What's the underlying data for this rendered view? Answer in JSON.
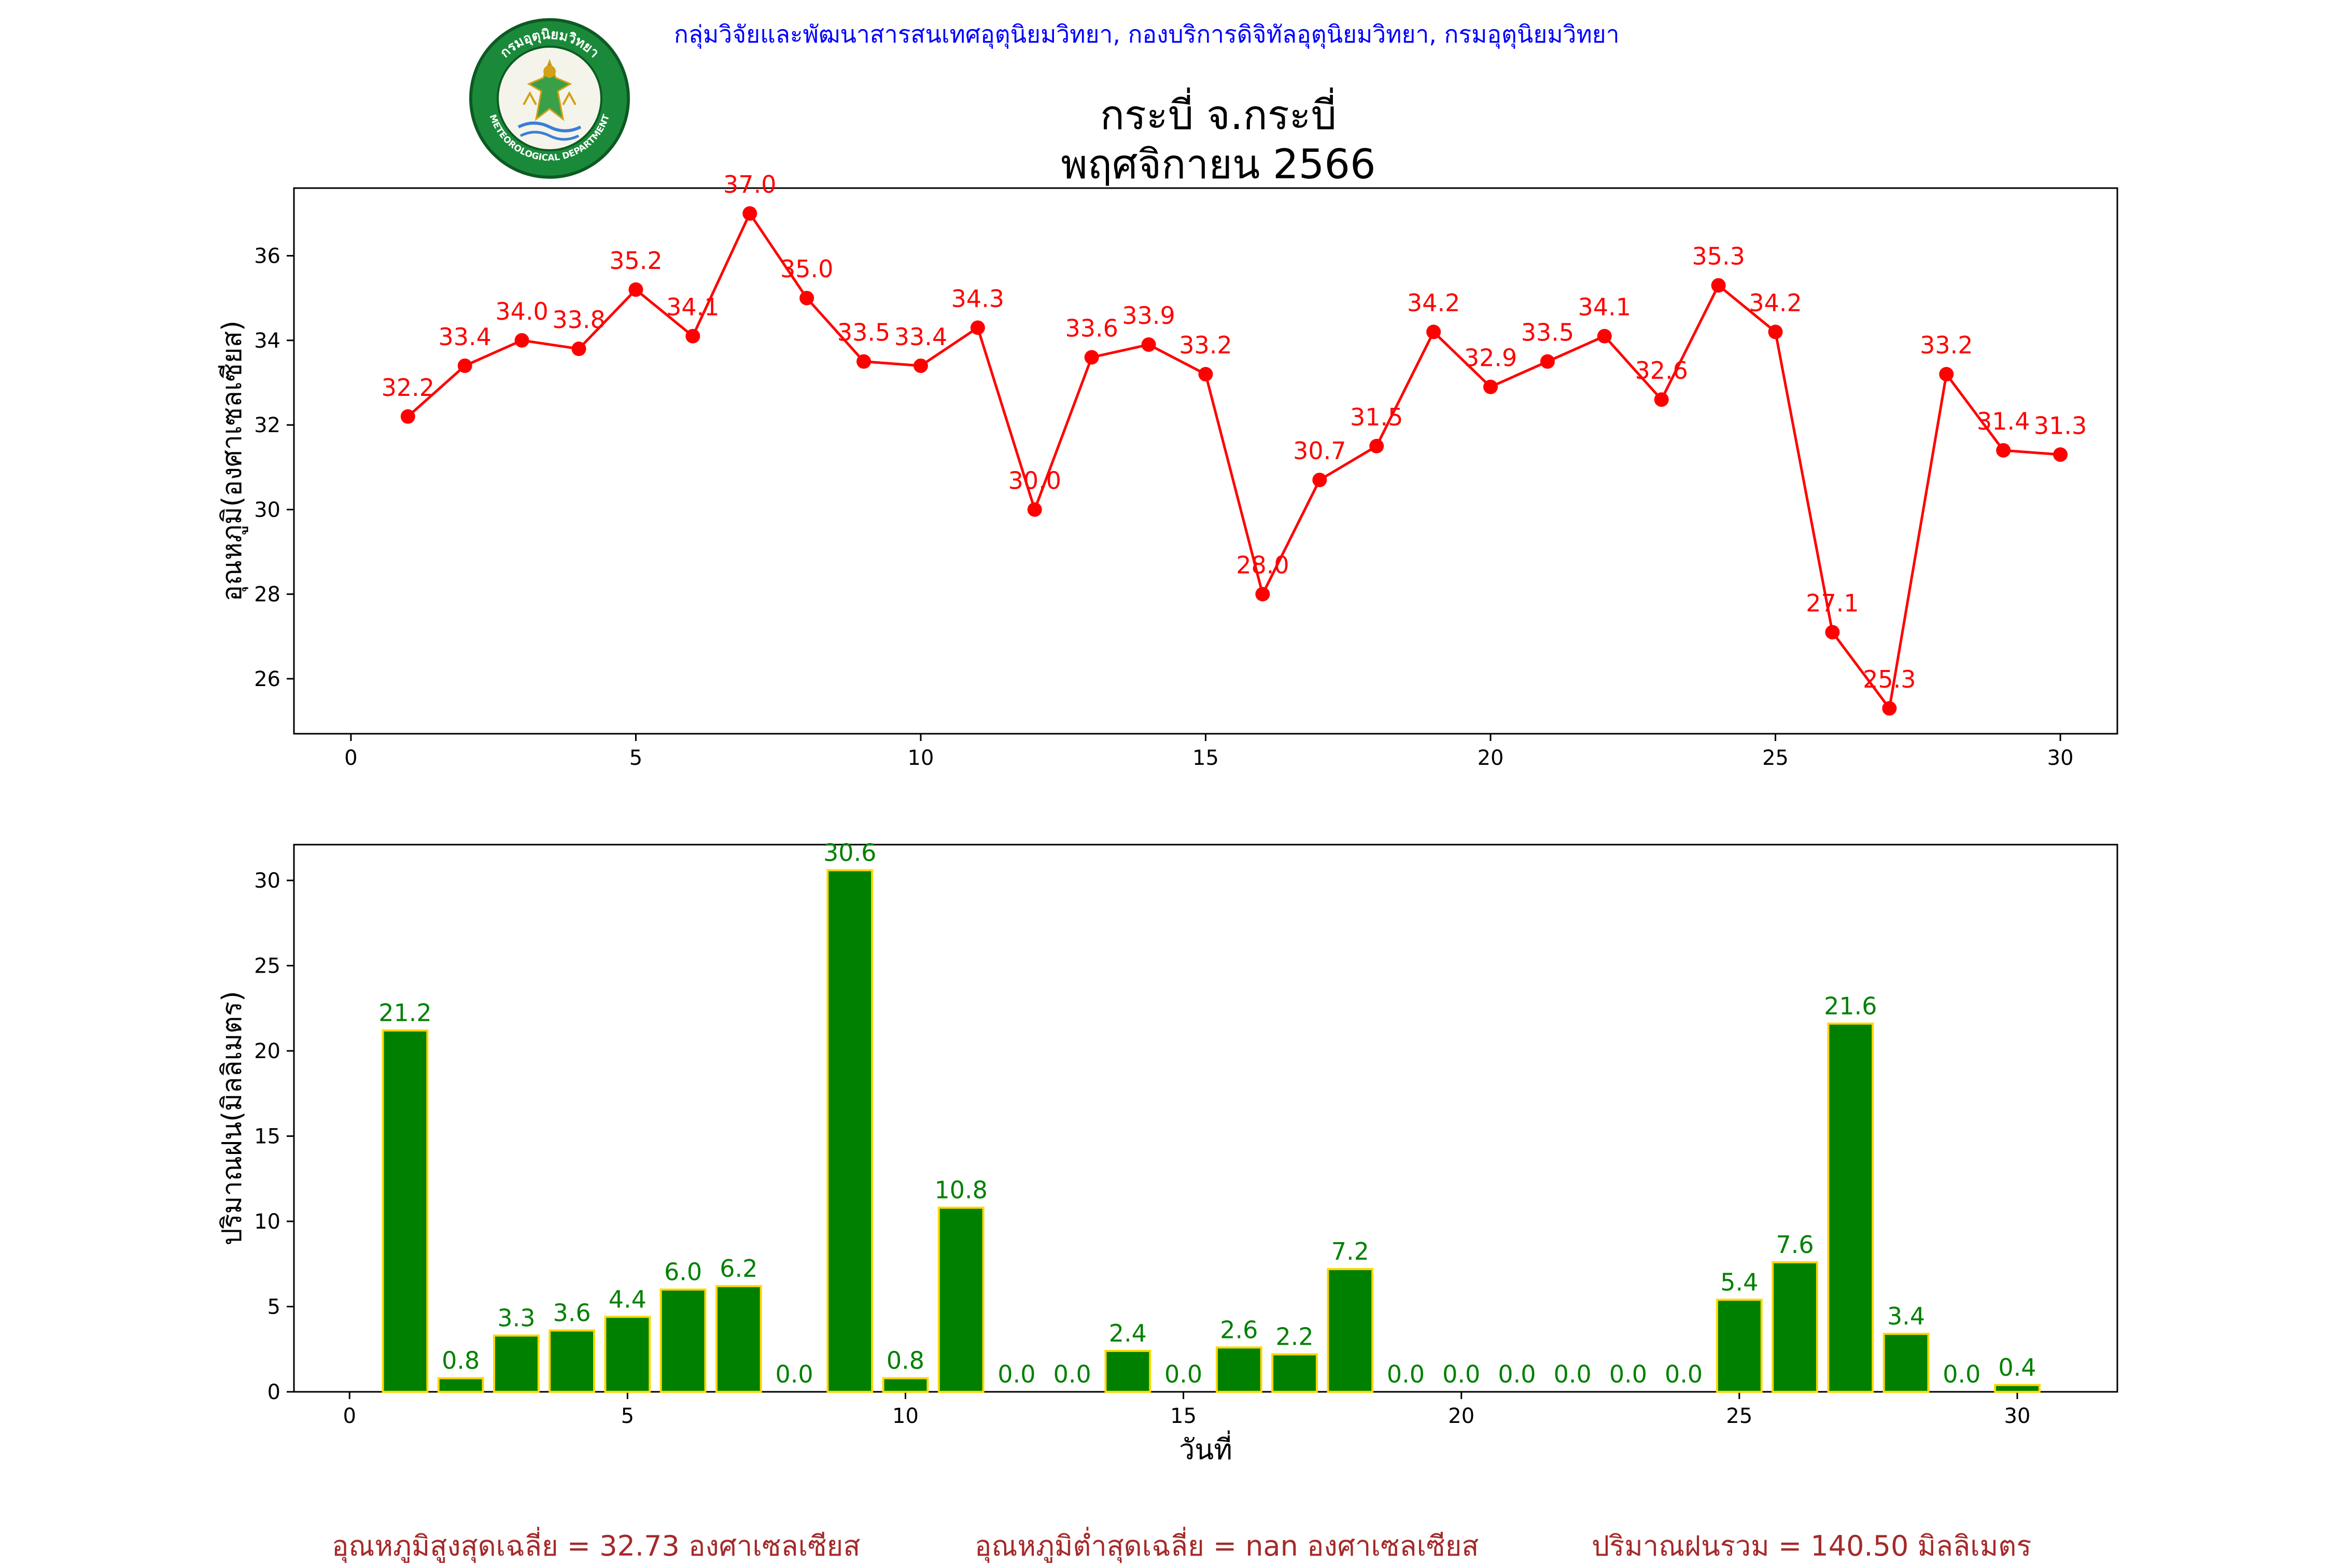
{
  "header": {
    "agency": "กลุ่มวิจัยและพัฒนาสารสนเทศอุตุนิยมวิทยา, กองบริการดิจิทัลอุตุนิยมวิทยา, กรมอุตุนิยมวิทยา",
    "title_line1": "กระบี่ จ.กระบี่",
    "title_line2": "พฤศจิกายน 2566",
    "logo_top_text": "กรมอุตุนิยมวิทยา",
    "logo_bottom_text": "METEOROLOGICAL DEPARTMENT"
  },
  "colors": {
    "temperature": "#ff0000",
    "rain_fill": "#008000",
    "rain_edge": "#ffd700",
    "footer": "#a52a2a",
    "agency": "#0000ff"
  },
  "chart_data": [
    {
      "type": "line",
      "ylabel": "อุณหภูมิ(องศาเซลเซียส)",
      "xlabel": "",
      "x": [
        1,
        2,
        3,
        4,
        5,
        6,
        7,
        8,
        9,
        10,
        11,
        12,
        13,
        14,
        15,
        16,
        17,
        18,
        19,
        20,
        21,
        22,
        23,
        24,
        25,
        26,
        27,
        28,
        29,
        30
      ],
      "values": [
        32.2,
        33.4,
        34.0,
        33.8,
        35.2,
        34.1,
        37.0,
        35.0,
        33.5,
        33.4,
        34.3,
        30.0,
        33.6,
        33.9,
        33.2,
        28.0,
        30.7,
        31.5,
        34.2,
        32.9,
        33.5,
        34.1,
        32.6,
        35.3,
        34.2,
        27.1,
        25.3,
        33.2,
        31.4,
        31.3
      ],
      "xlim": [
        -1,
        31
      ],
      "ylim": [
        24.7,
        37.6
      ],
      "xticks": [
        0,
        5,
        10,
        15,
        20,
        25,
        30
      ],
      "yticks": [
        26,
        28,
        30,
        32,
        34,
        36
      ],
      "color": "#ff0000",
      "marker": "circle",
      "data_labels": true
    },
    {
      "type": "bar",
      "ylabel": "ปริมาณฝน(มิลลิเมตร)",
      "xlabel": "วันที่",
      "x": [
        1,
        2,
        3,
        4,
        5,
        6,
        7,
        8,
        9,
        10,
        11,
        12,
        13,
        14,
        15,
        16,
        17,
        18,
        19,
        20,
        21,
        22,
        23,
        24,
        25,
        26,
        27,
        28,
        29,
        30
      ],
      "values": [
        21.2,
        0.8,
        3.3,
        3.6,
        4.4,
        6.0,
        6.2,
        0.0,
        30.6,
        0.8,
        10.8,
        0.0,
        0.0,
        2.4,
        0.0,
        2.6,
        2.2,
        7.2,
        0.0,
        0.0,
        0.0,
        0.0,
        0.0,
        0.0,
        5.4,
        7.6,
        21.6,
        3.4,
        0.0,
        0.4
      ],
      "xlim": [
        -1,
        31.8
      ],
      "ylim": [
        0,
        32.1
      ],
      "xticks": [
        0,
        5,
        10,
        15,
        20,
        25,
        30
      ],
      "yticks": [
        0,
        5,
        10,
        15,
        20,
        25,
        30
      ],
      "color": "#008000",
      "edgecolor": "#ffd700",
      "data_labels": true
    }
  ],
  "footer": {
    "max_temp_avg": "อุณหภูมิสูงสุดเฉลี่ย = 32.73 องศาเซลเซียส",
    "min_temp_avg": "อุณหภูมิต่ำสุดเฉลี่ย = nan องศาเซลเซียส",
    "rain_total": "ปริมาณฝนรวม = 140.50 มิลลิเมตร"
  }
}
